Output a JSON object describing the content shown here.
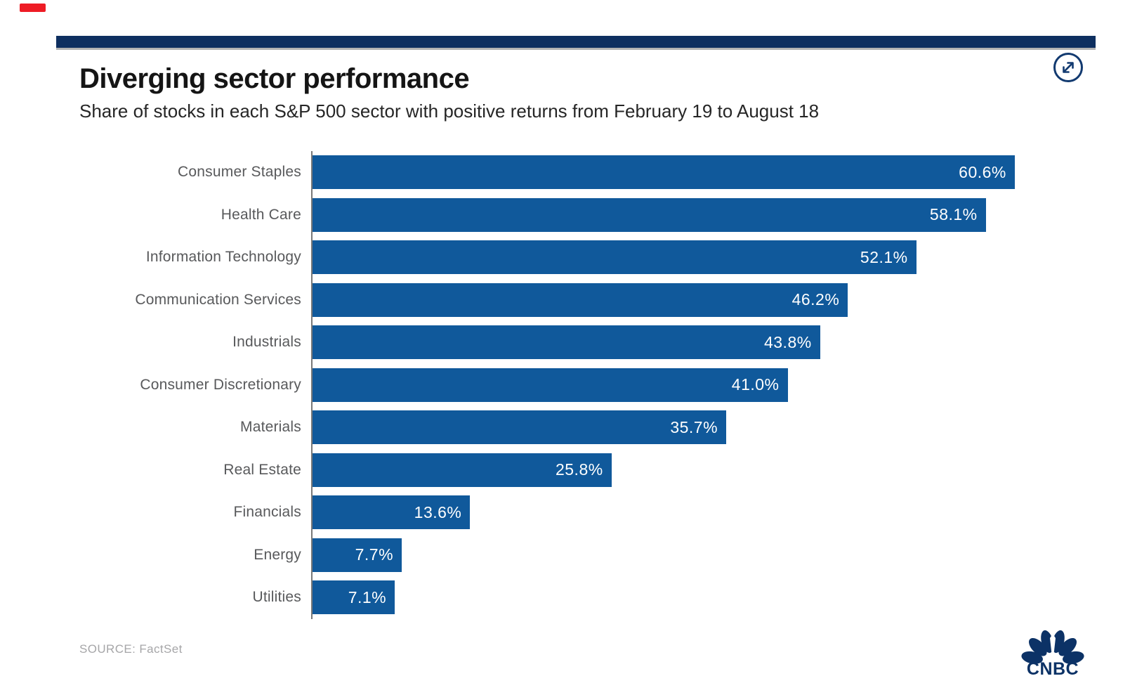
{
  "page": {
    "source": "SOURCE: FactSet",
    "brand": "CNBC"
  },
  "icons": {
    "expand": "circle-with-diagonal-expand-arrows",
    "logo": "cnbc-peacock",
    "record_indicator": "red-rectangle-indicator"
  },
  "colors": {
    "bar_blue": "#10599b",
    "header_bar_navy": "#0e2f60",
    "icon_navy": "#123a70",
    "logo_navy": "#0c3266",
    "sector_label_gray": "#58595b",
    "value_text_white": "#ffffff",
    "source_gray": "#a6a6a8",
    "record_red": "#ee1c25"
  },
  "chart_data": {
    "type": "bar",
    "orientation": "horizontal",
    "title": "Diverging sector performance",
    "subtitle": "Share of stocks in each S&P 500 sector with positive returns from February 19 to August 18",
    "categories": [
      "Consumer Staples",
      "Health Care",
      "Information Technology",
      "Communication Services",
      "Industrials",
      "Consumer Discretionary",
      "Materials",
      "Real Estate",
      "Financials",
      "Energy",
      "Utilities"
    ],
    "values": [
      60.6,
      58.1,
      52.1,
      46.2,
      43.8,
      41.0,
      35.7,
      25.8,
      13.6,
      7.7,
      7.1
    ],
    "value_labels": [
      "60.6%",
      "58.1%",
      "52.1%",
      "46.2%",
      "43.8%",
      "41.0%",
      "35.7%",
      "25.8%",
      "13.6%",
      "7.7%",
      "7.1%"
    ],
    "xlabel": "",
    "ylabel": "",
    "xlim": [
      0,
      61
    ],
    "grid": false,
    "legend": false,
    "value_label_position": "inside-end"
  }
}
